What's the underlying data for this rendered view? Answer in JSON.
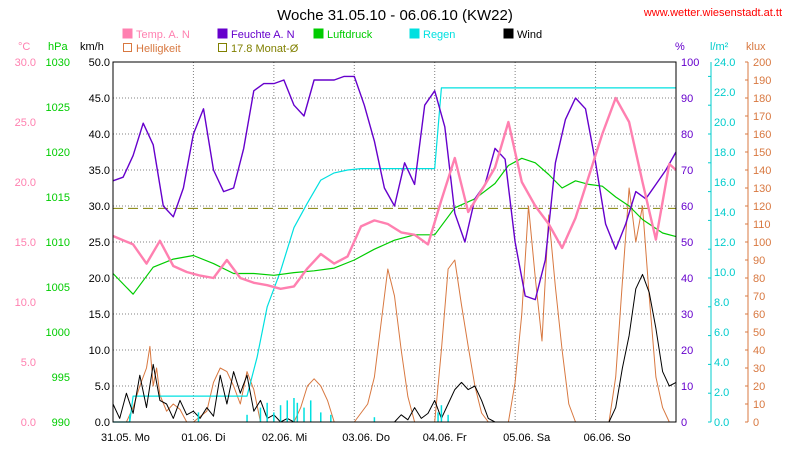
{
  "title": "Woche 31.05.10 - 06.06.10 (KW22)",
  "source": "www.wetter.wiesenstadt.at.tt",
  "colors": {
    "temp": "#ff80b0",
    "humidity": "#6600cc",
    "pressure": "#00cc00",
    "rain": "#00e0e0",
    "wind": "#000000",
    "brightness": "#d87840",
    "monthavg": "#808000",
    "grid": "#808080",
    "axisleft_temp": "#ff80b0",
    "axis_hpa": "#00cc00",
    "axis_kmh": "#000000",
    "axis_pct": "#6600cc",
    "axis_lm2": "#00cccc",
    "axis_klux": "#d87840",
    "title": "#000000",
    "source": "#ff0000"
  },
  "legend": [
    {
      "label": "Temp. A. N",
      "color": "#ff80b0",
      "style": "box"
    },
    {
      "label": "Feuchte A. N",
      "color": "#6600cc",
      "style": "box"
    },
    {
      "label": "Luftdruck",
      "color": "#00cc00",
      "style": "box"
    },
    {
      "label": "Regen",
      "color": "#00e0e0",
      "style": "box"
    },
    {
      "label": "Wind",
      "color": "#000000",
      "style": "box"
    },
    {
      "label": "Helligkeit",
      "color": "#d87840",
      "style": "outline"
    },
    {
      "label": "17.8 Monat-Ø",
      "color": "#808000",
      "style": "outline"
    }
  ],
  "axis_units": {
    "temp": "°C",
    "hpa": "hPa",
    "kmh": "km/h",
    "pct": "%",
    "lm2": "l/m²",
    "klux": "klux"
  },
  "axes": {
    "temp": [
      "0.0",
      "5.0",
      "10.0",
      "15.0",
      "20.0",
      "25.0",
      "30.0"
    ],
    "hpa": [
      "990",
      "995",
      "1000",
      "1005",
      "1010",
      "1015",
      "1020",
      "1025",
      "1030"
    ],
    "kmh": [
      "0.0",
      "5.0",
      "10.0",
      "15.0",
      "20.0",
      "25.0",
      "30.0",
      "35.0",
      "40.0",
      "45.0",
      "50.0"
    ],
    "pct": [
      "0",
      "10",
      "20",
      "30",
      "40",
      "50",
      "60",
      "70",
      "80",
      "90",
      "100"
    ],
    "lm2": [
      "0.0",
      "2.0",
      "4.0",
      "6.0",
      "8.0",
      "10.0",
      "12.0",
      "14.0",
      "16.0",
      "18.0",
      "20.0",
      "22.0",
      "24.0"
    ],
    "klux": [
      "0",
      "10",
      "20",
      "30",
      "40",
      "50",
      "60",
      "70",
      "80",
      "90",
      "100",
      "110",
      "120",
      "130",
      "140",
      "150",
      "160",
      "170",
      "180",
      "190",
      "200"
    ]
  },
  "day_labels": [
    "31.05.  Mo",
    "01.06.  Di",
    "02.06.  Mi",
    "03.06.  Do",
    "04.06.  Fr",
    "05.06.  Sa",
    "06.06.  So"
  ],
  "chart_data": {
    "type": "line",
    "title": "Woche 31.05.10 - 06.06.10 (KW22)",
    "x_unit": "hours since 31.05. 00:00",
    "x_range": [
      0,
      168
    ],
    "ylim": {
      "temp_C": [
        0,
        30
      ],
      "pressure_hPa": [
        990,
        1030
      ],
      "wind_kmh": [
        0,
        50
      ],
      "humidity_pct": [
        0,
        100
      ],
      "rain_lm2": [
        0,
        25
      ],
      "brightness_klux": [
        0,
        200
      ]
    },
    "month_average_temp_C": 17.8,
    "series": [
      {
        "name": "Temp. A. N",
        "unit": "°C",
        "axis": "temp",
        "x": [
          0,
          6,
          10,
          14,
          18,
          22,
          26,
          30,
          34,
          38,
          42,
          46,
          50,
          54,
          58,
          62,
          66,
          70,
          74,
          78,
          82,
          86,
          90,
          94,
          98,
          102,
          106,
          110,
          114,
          118,
          122,
          126,
          130,
          134,
          138,
          142,
          146,
          150,
          154,
          158,
          162,
          166,
          168
        ],
        "y": [
          15.5,
          14.8,
          13.2,
          15.1,
          13.0,
          12.5,
          12.2,
          12.0,
          13.5,
          12.0,
          11.6,
          11.4,
          11.1,
          11.3,
          12.8,
          14.0,
          13.2,
          13.8,
          16.3,
          16.8,
          16.5,
          15.8,
          15.6,
          14.8,
          18.5,
          22.0,
          17.5,
          19.3,
          21.2,
          25.0,
          20.0,
          18.0,
          16.5,
          14.5,
          17.0,
          20.5,
          24.0,
          27.0,
          25.0,
          20.0,
          15.2,
          21.5,
          21.0
        ]
      },
      {
        "name": "Feuchte A. N",
        "unit": "%",
        "axis": "pct",
        "x": [
          0,
          3,
          6,
          9,
          12,
          15,
          18,
          21,
          24,
          27,
          30,
          33,
          36,
          39,
          42,
          45,
          48,
          51,
          54,
          57,
          60,
          63,
          66,
          69,
          72,
          75,
          78,
          81,
          84,
          87,
          90,
          93,
          96,
          99,
          102,
          105,
          108,
          111,
          114,
          117,
          120,
          123,
          126,
          129,
          132,
          135,
          138,
          141,
          144,
          147,
          150,
          153,
          156,
          159,
          162,
          165,
          168
        ],
        "y": [
          67,
          68,
          74,
          83,
          77,
          60,
          57,
          65,
          80,
          87,
          70,
          64,
          65,
          76,
          92,
          94,
          94,
          95,
          88,
          85,
          95,
          95,
          95,
          96,
          96,
          88,
          78,
          65,
          60,
          72,
          66,
          88,
          92,
          82,
          58,
          50,
          62,
          66,
          76,
          73,
          50,
          35,
          34,
          45,
          72,
          84,
          90,
          87,
          72,
          55,
          48,
          55,
          64,
          62,
          66,
          70,
          75
        ]
      },
      {
        "name": "Luftdruck",
        "unit": "hPa",
        "axis": "hpa",
        "x": [
          0,
          6,
          12,
          18,
          24,
          30,
          36,
          42,
          48,
          54,
          60,
          66,
          72,
          78,
          84,
          90,
          96,
          102,
          108,
          114,
          118,
          122,
          126,
          130,
          134,
          138,
          142,
          146,
          150,
          154,
          158,
          164,
          168
        ],
        "y": [
          1006.5,
          1004.2,
          1007.2,
          1008.1,
          1008.5,
          1007.6,
          1006.5,
          1006.5,
          1006.3,
          1006.6,
          1006.8,
          1007.1,
          1008.0,
          1009.2,
          1010.2,
          1010.8,
          1010.8,
          1013.8,
          1014.8,
          1016.5,
          1018.5,
          1019.3,
          1018.8,
          1017.5,
          1016.0,
          1016.8,
          1016.4,
          1016.2,
          1015.0,
          1014.0,
          1012.5,
          1011.0,
          1010.6
        ]
      },
      {
        "name": "Regen",
        "unit": "l/m²",
        "axis": "lm2",
        "x": [
          0,
          4,
          5,
          6,
          25,
          38,
          40,
          43,
          46,
          50,
          54,
          58,
          62,
          66,
          70,
          74,
          80,
          85,
          90,
          94,
          96,
          98,
          115,
          168
        ],
        "y": [
          0,
          0,
          0,
          1.8,
          1.8,
          1.8,
          1.8,
          4.5,
          8.0,
          10.5,
          13.5,
          15.2,
          16.8,
          17.3,
          17.5,
          17.6,
          17.6,
          17.6,
          17.6,
          17.6,
          17.6,
          23.2,
          23.2,
          23.2
        ]
      },
      {
        "name": "Wind",
        "unit": "km/h",
        "axis": "kmh",
        "x": [
          0,
          2,
          4,
          6,
          8,
          10,
          12,
          14,
          16,
          18,
          20,
          22,
          24,
          26,
          28,
          30,
          32,
          34,
          36,
          38,
          40,
          42,
          44,
          46,
          48,
          50,
          52,
          54,
          56,
          58,
          60,
          62,
          64,
          66,
          68,
          70,
          72,
          74,
          76,
          78,
          80,
          82,
          84,
          86,
          88,
          90,
          92,
          94,
          96,
          98,
          100,
          102,
          104,
          106,
          108,
          110,
          112,
          114,
          116,
          118,
          120,
          122,
          124,
          126,
          128,
          130,
          132,
          134,
          136,
          138,
          140,
          142,
          144,
          146,
          148,
          150,
          152,
          154,
          156,
          158,
          160,
          162,
          164,
          166,
          168
        ],
        "y": [
          2.5,
          0.5,
          4.0,
          1.2,
          6.5,
          2.0,
          8.0,
          3.0,
          2.5,
          0.5,
          3.0,
          1.0,
          1.5,
          0.5,
          2.0,
          0.8,
          6.5,
          2.5,
          7.0,
          4.0,
          6.5,
          1.5,
          3.0,
          0.5,
          1.0,
          0,
          0.5,
          0,
          0,
          0,
          0,
          0,
          0,
          0,
          0,
          0,
          0,
          0,
          0,
          0,
          0,
          0,
          0,
          1.0,
          0.3,
          2.0,
          0.5,
          1.2,
          3.0,
          0.5,
          2.5,
          4.5,
          5.5,
          4.5,
          5.0,
          3.0,
          0.5,
          0,
          0,
          0,
          0,
          0,
          0,
          0,
          0,
          0,
          0,
          0,
          0,
          0,
          0,
          0,
          0,
          0,
          0,
          2.0,
          7.5,
          12.0,
          18.5,
          20.5,
          18.0,
          13.0,
          7.0,
          5.0,
          5.5
        ]
      },
      {
        "name": "Helligkeit",
        "unit": "klux",
        "axis": "klux",
        "x": [
          0,
          4,
          6,
          8,
          10,
          11,
          12,
          13,
          14,
          16,
          18,
          20,
          22,
          24,
          28,
          30,
          32,
          34,
          36,
          38,
          40,
          42,
          44,
          48,
          52,
          54,
          56,
          58,
          60,
          62,
          64,
          66,
          68,
          70,
          72,
          76,
          78,
          80,
          82,
          84,
          86,
          88,
          90,
          92,
          94,
          96,
          98,
          100,
          102,
          104,
          106,
          108,
          110,
          112,
          114,
          116,
          118,
          120,
          122,
          124,
          126,
          128,
          130,
          132,
          134,
          136,
          138,
          140,
          142,
          144,
          146,
          148,
          150,
          152,
          154,
          156,
          158,
          160,
          162,
          164,
          166,
          168
        ],
        "y": [
          0,
          0,
          8,
          20,
          30,
          42,
          20,
          30,
          15,
          6,
          10,
          7,
          0,
          0,
          6,
          22,
          30,
          28,
          20,
          10,
          28,
          18,
          0,
          0,
          0,
          0,
          8,
          20,
          24,
          20,
          12,
          0,
          0,
          0,
          0,
          10,
          25,
          55,
          85,
          70,
          40,
          14,
          0,
          0,
          0,
          0,
          40,
          85,
          90,
          65,
          42,
          20,
          5,
          0,
          0,
          0,
          0,
          22,
          60,
          120,
          80,
          45,
          115,
          75,
          40,
          10,
          0,
          0,
          0,
          0,
          0,
          0,
          25,
          78,
          130,
          100,
          120,
          70,
          25,
          8,
          0,
          0
        ]
      }
    ]
  }
}
